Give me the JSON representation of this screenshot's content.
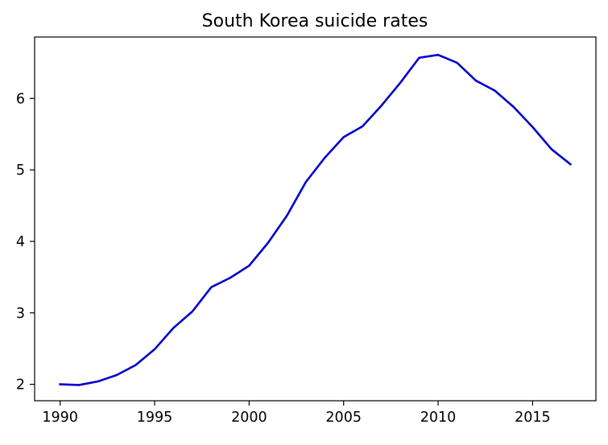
{
  "chart_data": {
    "type": "line",
    "title": "South Korea suicide rates",
    "xlabel": "",
    "ylabel": "",
    "xlim": [
      1988.65,
      2018.35
    ],
    "ylim": [
      1.77,
      6.86
    ],
    "x_ticks": [
      1990,
      1995,
      2000,
      2005,
      2010,
      2015
    ],
    "y_ticks": [
      2,
      3,
      4,
      5,
      6
    ],
    "grid": false,
    "legend": "none",
    "series": [
      {
        "color": "#0000cd",
        "x": [
          1990,
          1991,
          1992,
          1993,
          1994,
          1995,
          1996,
          1997,
          1998,
          1999,
          2000,
          2001,
          2002,
          2003,
          2004,
          2005,
          2006,
          2007,
          2008,
          2009,
          2010,
          2011,
          2012,
          2013,
          2014,
          2015,
          2016,
          2017
        ],
        "y": [
          2.0,
          1.99,
          2.04,
          2.13,
          2.27,
          2.49,
          2.79,
          3.02,
          3.36,
          3.49,
          3.66,
          3.98,
          4.36,
          4.83,
          5.17,
          5.46,
          5.61,
          5.9,
          6.22,
          6.57,
          6.61,
          6.5,
          6.25,
          6.11,
          5.88,
          5.6,
          5.29,
          5.08
        ]
      }
    ]
  }
}
